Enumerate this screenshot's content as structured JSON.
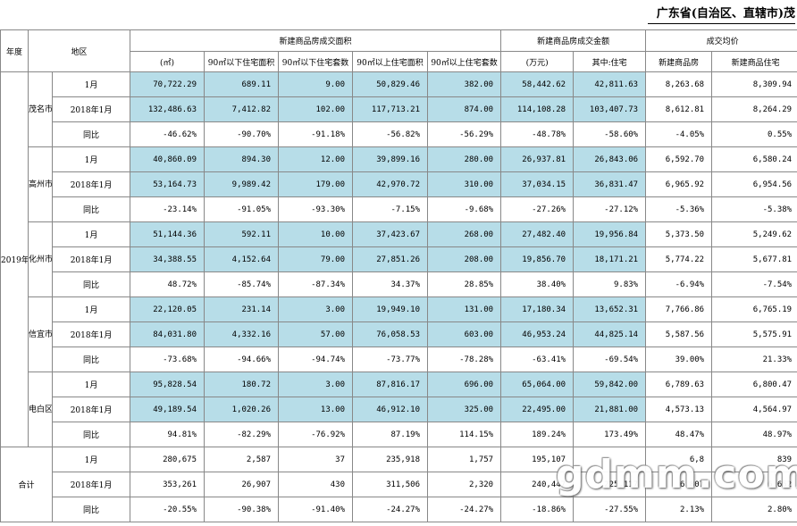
{
  "title": "广东省(自治区、直辖市)茂",
  "headers": {
    "year": "年度",
    "region": "地区",
    "area_group": "新建商品房成交面积",
    "amount_group": "新建商品房成交金额",
    "price_group": "成交均价",
    "sub": [
      "(㎡)",
      "90㎡以下住宅面积",
      "90㎡以下住宅套数",
      "90㎡以上住宅面积",
      "90㎡以上住宅套数",
      "(万元)",
      "其中:住宅",
      "新建商品房",
      "新建商品住宅"
    ]
  },
  "year_label": "2019年",
  "cities": [
    {
      "name": "茂名市",
      "rows": [
        {
          "label": "1月",
          "values": [
            "70,722.29",
            "689.11",
            "9.00",
            "50,829.46",
            "382.00",
            "58,442.62",
            "42,811.63",
            "8,263.68",
            "8,309.94"
          ]
        },
        {
          "label": "2018年1月",
          "values": [
            "132,486.63",
            "7,412.82",
            "102.00",
            "117,713.21",
            "874.00",
            "114,108.28",
            "103,407.73",
            "8,612.81",
            "8,264.29"
          ]
        },
        {
          "label": "同比",
          "values": [
            "-46.62%",
            "-90.70%",
            "-91.18%",
            "-56.82%",
            "-56.29%",
            "-48.78%",
            "-58.60%",
            "-4.05%",
            "0.55%"
          ]
        }
      ]
    },
    {
      "name": "高州市",
      "rows": [
        {
          "label": "1月",
          "values": [
            "40,860.09",
            "894.30",
            "12.00",
            "39,899.16",
            "280.00",
            "26,937.81",
            "26,843.06",
            "6,592.70",
            "6,580.24"
          ]
        },
        {
          "label": "2018年1月",
          "values": [
            "53,164.73",
            "9,989.42",
            "179.00",
            "42,970.72",
            "310.00",
            "37,034.15",
            "36,831.47",
            "6,965.92",
            "6,954.56"
          ]
        },
        {
          "label": "同比",
          "values": [
            "-23.14%",
            "-91.05%",
            "-93.30%",
            "-7.15%",
            "-9.68%",
            "-27.26%",
            "-27.12%",
            "-5.36%",
            "-5.38%"
          ]
        }
      ]
    },
    {
      "name": "化州市",
      "rows": [
        {
          "label": "1月",
          "values": [
            "51,144.36",
            "592.11",
            "10.00",
            "37,423.67",
            "268.00",
            "27,482.40",
            "19,956.84",
            "5,373.50",
            "5,249.62"
          ]
        },
        {
          "label": "2018年1月",
          "values": [
            "34,388.55",
            "4,152.64",
            "79.00",
            "27,851.26",
            "208.00",
            "19,856.70",
            "18,171.21",
            "5,774.22",
            "5,677.81"
          ]
        },
        {
          "label": "同比",
          "values": [
            "48.72%",
            "-85.74%",
            "-87.34%",
            "34.37%",
            "28.85%",
            "38.40%",
            "9.83%",
            "-6.94%",
            "-7.54%"
          ]
        }
      ]
    },
    {
      "name": "信宜市",
      "rows": [
        {
          "label": "1月",
          "values": [
            "22,120.05",
            "231.14",
            "3.00",
            "19,949.10",
            "131.00",
            "17,180.34",
            "13,652.31",
            "7,766.86",
            "6,765.19"
          ]
        },
        {
          "label": "2018年1月",
          "values": [
            "84,031.80",
            "4,332.16",
            "57.00",
            "76,058.53",
            "603.00",
            "46,953.24",
            "44,825.14",
            "5,587.56",
            "5,575.91"
          ]
        },
        {
          "label": "同比",
          "values": [
            "-73.68%",
            "-94.66%",
            "-94.74%",
            "-73.77%",
            "-78.28%",
            "-63.41%",
            "-69.54%",
            "39.00%",
            "21.33%"
          ]
        }
      ]
    },
    {
      "name": "电白区",
      "rows": [
        {
          "label": "1月",
          "values": [
            "95,828.54",
            "180.72",
            "3.00",
            "87,816.17",
            "696.00",
            "65,064.00",
            "59,842.00",
            "6,789.63",
            "6,800.47"
          ]
        },
        {
          "label": "2018年1月",
          "values": [
            "49,189.54",
            "1,020.26",
            "13.00",
            "46,912.10",
            "325.00",
            "22,495.00",
            "21,881.00",
            "4,573.13",
            "4,564.97"
          ]
        },
        {
          "label": "同比",
          "values": [
            "94.81%",
            "-82.29%",
            "-76.92%",
            "87.19%",
            "114.15%",
            "189.24%",
            "173.49%",
            "48.47%",
            "48.97%"
          ]
        }
      ]
    }
  ],
  "total": {
    "name": "合计",
    "rows": [
      {
        "label": "1月",
        "values": [
          "280,675",
          "2,587",
          "37",
          "235,918",
          "1,757",
          "195,107",
          "",
          "6,8",
          "839"
        ]
      },
      {
        "label": "2018年1月",
        "values": [
          "353,261",
          "26,907",
          "430",
          "311,506",
          "2,320",
          "240,447",
          "225,117",
          "6,807",
          "6,652"
        ]
      },
      {
        "label": "同比",
        "values": [
          "-20.55%",
          "-90.38%",
          "-91.40%",
          "-24.27%",
          "-24.27%",
          "-18.86%",
          "-27.55%",
          "2.13%",
          "2.80%"
        ]
      }
    ]
  },
  "watermark": "gdmm.com"
}
